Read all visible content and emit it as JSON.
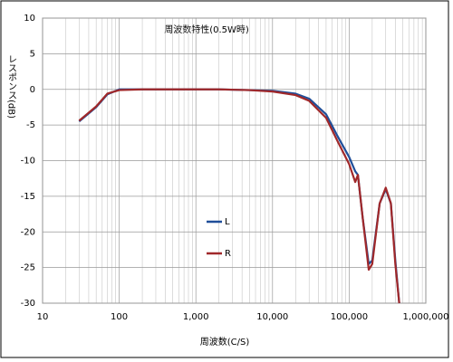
{
  "chart_data": {
    "type": "line",
    "title": "周波数特性(0.5W時)",
    "x_label": "周波数(C/S)",
    "y_label": "レスポンス(dB)",
    "x": [
      30,
      50,
      70,
      100,
      200,
      500,
      1000,
      2000,
      5000,
      10000,
      20000,
      30000,
      50000,
      70000,
      100000,
      120000,
      130000,
      150000,
      180000,
      200000,
      250000,
      300000,
      350000,
      400000,
      450000
    ],
    "series": [
      {
        "name": "L",
        "color": "#1f4e99",
        "values": [
          -4.5,
          -2.5,
          -0.7,
          0,
          0,
          0,
          0,
          0,
          -0.1,
          -0.2,
          -0.6,
          -1.3,
          -3.5,
          -6.5,
          -9.5,
          -11.5,
          -12,
          -18,
          -24.5,
          -24,
          -16,
          -14,
          -16,
          -24,
          -30
        ]
      },
      {
        "name": "R",
        "color": "#a0282a",
        "values": [
          -4.4,
          -2.4,
          -0.6,
          -0.1,
          0,
          0,
          0,
          0,
          -0.1,
          -0.3,
          -0.8,
          -1.6,
          -4,
          -7.2,
          -10.5,
          -13,
          -12,
          -18,
          -25.3,
          -24.5,
          -16,
          -13.8,
          -16,
          -24.5,
          -30
        ]
      }
    ],
    "xscale": "log",
    "xlim": [
      10,
      1000000
    ],
    "xticks": [
      10,
      100,
      {
        "value": 1000,
        "label": "1,000"
      },
      {
        "value": 10000,
        "label": "10,000"
      },
      {
        "value": 100000,
        "label": "100,000"
      },
      {
        "value": 1000000,
        "label": "1,000,000"
      }
    ],
    "ylim": [
      -30,
      10
    ],
    "yticks": [
      -30,
      -25,
      -20,
      -15,
      -10,
      -5,
      0,
      5,
      10
    ],
    "grid": true,
    "minor_grid": true
  }
}
